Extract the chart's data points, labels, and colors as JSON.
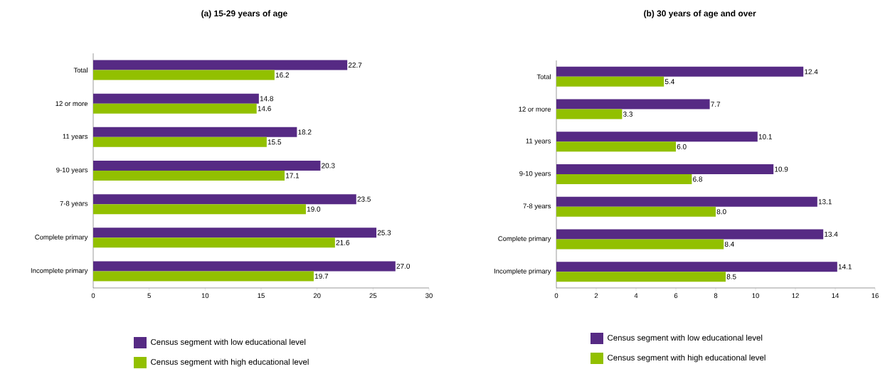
{
  "chart_data": [
    {
      "type": "bar",
      "orientation": "horizontal",
      "title": "(a) 15-29 years of age",
      "categories": [
        "Total",
        "12 or more",
        "11 years",
        "9-10 years",
        "7-8 years",
        "Complete primary",
        "Incomplete primary"
      ],
      "series": [
        {
          "name": "Census segment with low educational level",
          "color": "#562a84",
          "values": [
            22.7,
            14.8,
            18.2,
            20.3,
            23.5,
            25.3,
            27.0
          ],
          "value_labels": [
            "22.7",
            "14.8",
            "18.2",
            "20.3",
            "23.5",
            "25.3",
            "27.0"
          ]
        },
        {
          "name": "Census segment with high educational level",
          "color": "#92c000",
          "values": [
            16.2,
            14.6,
            15.5,
            17.1,
            19.0,
            21.6,
            19.7
          ],
          "value_labels": [
            "16.2",
            "14.6",
            "15.5",
            "17.1",
            "19.0",
            "21.6",
            "19.7"
          ]
        }
      ],
      "xlim": [
        0,
        30
      ],
      "xticks": [
        0,
        5,
        10,
        15,
        20,
        25,
        30
      ],
      "legend": "bottom",
      "grid": false
    },
    {
      "type": "bar",
      "orientation": "horizontal",
      "title": "(b) 30 years of age and over",
      "categories": [
        "Total",
        "12 or more",
        "11 years",
        "9-10 years",
        "7-8 years",
        "Complete primary",
        "Incomplete primary"
      ],
      "series": [
        {
          "name": "Census segment with low educational level",
          "color": "#562a84",
          "values": [
            12.4,
            7.7,
            10.1,
            10.9,
            13.1,
            13.4,
            14.1
          ],
          "value_labels": [
            "12.4",
            "7.7",
            "10.1",
            "10.9",
            "13.1",
            "13.4",
            "14.1"
          ]
        },
        {
          "name": "Census segment with high educational level",
          "color": "#92c000",
          "values": [
            5.4,
            3.3,
            6.0,
            6.8,
            8.0,
            8.4,
            8.5
          ],
          "value_labels": [
            "5.4",
            "3.3",
            "6.0",
            "6.8",
            "8.0",
            "8.4",
            "8.5"
          ]
        }
      ],
      "xlim": [
        0,
        16
      ],
      "xticks": [
        0,
        2,
        4,
        6,
        8,
        10,
        12,
        14,
        16
      ],
      "legend": "bottom",
      "grid": false
    }
  ]
}
